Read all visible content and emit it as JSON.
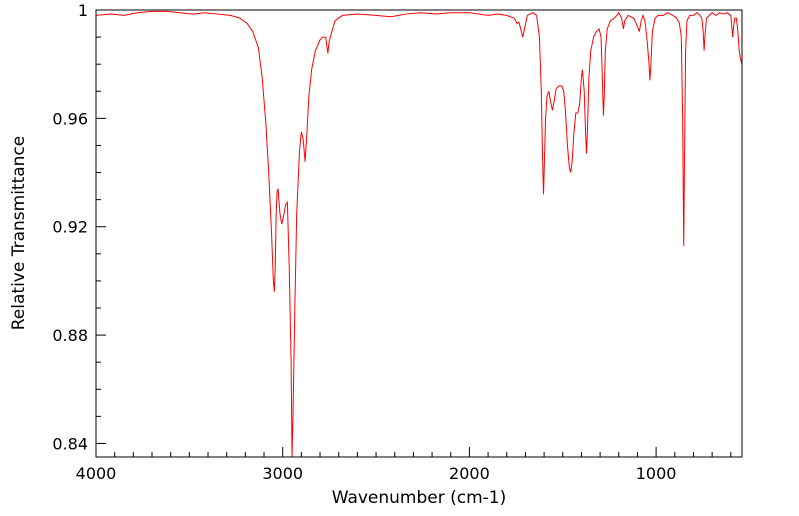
{
  "chart_data": {
    "type": "line",
    "title": "",
    "xlabel": "Wavenumber (cm-1)",
    "ylabel": "Relative Transmittance",
    "xlim": [
      4000,
      540
    ],
    "ylim": [
      0.835,
      1.0
    ],
    "x_ticks": [
      4000,
      3000,
      2000,
      1000
    ],
    "x_tick_labels": [
      "4000",
      "3000",
      "2000",
      "1000"
    ],
    "y_ticks": [
      0.84,
      0.88,
      0.92,
      0.96,
      1.0
    ],
    "y_tick_labels": [
      "0.84",
      "0.88",
      "0.92",
      "0.96",
      "1"
    ],
    "grid": false,
    "legend": "none",
    "series": [
      {
        "color": "#ff0000",
        "points": [
          [
            4000,
            0.998
          ],
          [
            3920,
            0.9985
          ],
          [
            3850,
            0.998
          ],
          [
            3780,
            0.999
          ],
          [
            3700,
            0.9995
          ],
          [
            3620,
            0.9995
          ],
          [
            3550,
            0.999
          ],
          [
            3480,
            0.9985
          ],
          [
            3420,
            0.999
          ],
          [
            3350,
            0.9985
          ],
          [
            3280,
            0.998
          ],
          [
            3230,
            0.997
          ],
          [
            3190,
            0.995
          ],
          [
            3160,
            0.992
          ],
          [
            3130,
            0.986
          ],
          [
            3110,
            0.975
          ],
          [
            3090,
            0.958
          ],
          [
            3075,
            0.94
          ],
          [
            3060,
            0.918
          ],
          [
            3050,
            0.9
          ],
          [
            3045,
            0.896
          ],
          [
            3040,
            0.905
          ],
          [
            3035,
            0.925
          ],
          [
            3030,
            0.933
          ],
          [
            3025,
            0.934
          ],
          [
            3015,
            0.925
          ],
          [
            3005,
            0.921
          ],
          [
            2995,
            0.924
          ],
          [
            2985,
            0.928
          ],
          [
            2975,
            0.929
          ],
          [
            2965,
            0.905
          ],
          [
            2955,
            0.87
          ],
          [
            2950,
            0.835
          ],
          [
            2945,
            0.85
          ],
          [
            2935,
            0.89
          ],
          [
            2925,
            0.925
          ],
          [
            2910,
            0.948
          ],
          [
            2900,
            0.955
          ],
          [
            2890,
            0.952
          ],
          [
            2880,
            0.944
          ],
          [
            2870,
            0.955
          ],
          [
            2860,
            0.968
          ],
          [
            2845,
            0.978
          ],
          [
            2825,
            0.985
          ],
          [
            2800,
            0.989
          ],
          [
            2785,
            0.99
          ],
          [
            2770,
            0.99
          ],
          [
            2758,
            0.984
          ],
          [
            2752,
            0.988
          ],
          [
            2745,
            0.99
          ],
          [
            2720,
            0.996
          ],
          [
            2680,
            0.998
          ],
          [
            2600,
            0.9985
          ],
          [
            2500,
            0.998
          ],
          [
            2420,
            0.9975
          ],
          [
            2340,
            0.9985
          ],
          [
            2260,
            0.999
          ],
          [
            2180,
            0.9985
          ],
          [
            2100,
            0.999
          ],
          [
            2000,
            0.999
          ],
          [
            1950,
            0.9985
          ],
          [
            1900,
            0.998
          ],
          [
            1850,
            0.9985
          ],
          [
            1800,
            0.998
          ],
          [
            1760,
            0.997
          ],
          [
            1745,
            0.995
          ],
          [
            1735,
            0.9955
          ],
          [
            1725,
            0.993
          ],
          [
            1715,
            0.99
          ],
          [
            1705,
            0.993
          ],
          [
            1690,
            0.998
          ],
          [
            1660,
            0.999
          ],
          [
            1640,
            0.998
          ],
          [
            1625,
            0.99
          ],
          [
            1615,
            0.97
          ],
          [
            1608,
            0.945
          ],
          [
            1603,
            0.932
          ],
          [
            1598,
            0.945
          ],
          [
            1592,
            0.96
          ],
          [
            1585,
            0.968
          ],
          [
            1575,
            0.97
          ],
          [
            1565,
            0.966
          ],
          [
            1555,
            0.963
          ],
          [
            1545,
            0.967
          ],
          [
            1535,
            0.971
          ],
          [
            1520,
            0.972
          ],
          [
            1505,
            0.972
          ],
          [
            1495,
            0.97
          ],
          [
            1485,
            0.962
          ],
          [
            1475,
            0.95
          ],
          [
            1465,
            0.942
          ],
          [
            1458,
            0.94
          ],
          [
            1450,
            0.944
          ],
          [
            1440,
            0.955
          ],
          [
            1430,
            0.962
          ],
          [
            1420,
            0.962
          ],
          [
            1410,
            0.965
          ],
          [
            1400,
            0.975
          ],
          [
            1395,
            0.978
          ],
          [
            1385,
            0.97
          ],
          [
            1378,
            0.955
          ],
          [
            1373,
            0.947
          ],
          [
            1368,
            0.955
          ],
          [
            1360,
            0.975
          ],
          [
            1350,
            0.985
          ],
          [
            1335,
            0.99
          ],
          [
            1320,
            0.992
          ],
          [
            1305,
            0.993
          ],
          [
            1295,
            0.99
          ],
          [
            1288,
            0.975
          ],
          [
            1282,
            0.961
          ],
          [
            1278,
            0.968
          ],
          [
            1272,
            0.985
          ],
          [
            1262,
            0.993
          ],
          [
            1245,
            0.996
          ],
          [
            1225,
            0.997
          ],
          [
            1210,
            0.998
          ],
          [
            1200,
            0.999
          ],
          [
            1185,
            0.997
          ],
          [
            1175,
            0.993
          ],
          [
            1168,
            0.996
          ],
          [
            1150,
            0.998
          ],
          [
            1120,
            0.997
          ],
          [
            1100,
            0.994
          ],
          [
            1090,
            0.992
          ],
          [
            1080,
            0.996
          ],
          [
            1070,
            0.998
          ],
          [
            1060,
            0.996
          ],
          [
            1050,
            0.99
          ],
          [
            1040,
            0.982
          ],
          [
            1033,
            0.974
          ],
          [
            1028,
            0.98
          ],
          [
            1020,
            0.992
          ],
          [
            1005,
            0.997
          ],
          [
            990,
            0.998
          ],
          [
            960,
            0.998
          ],
          [
            940,
            0.999
          ],
          [
            910,
            0.998
          ],
          [
            890,
            0.997
          ],
          [
            875,
            0.995
          ],
          [
            865,
            0.99
          ],
          [
            858,
            0.96
          ],
          [
            852,
            0.913
          ],
          [
            848,
            0.945
          ],
          [
            842,
            0.985
          ],
          [
            835,
            0.996
          ],
          [
            820,
            0.998
          ],
          [
            800,
            0.998
          ],
          [
            780,
            0.999
          ],
          [
            765,
            0.998
          ],
          [
            755,
            0.997
          ],
          [
            748,
            0.992
          ],
          [
            743,
            0.985
          ],
          [
            738,
            0.991
          ],
          [
            730,
            0.997
          ],
          [
            715,
            0.998
          ],
          [
            700,
            0.999
          ],
          [
            680,
            0.998
          ],
          [
            660,
            0.999
          ],
          [
            640,
            0.9985
          ],
          [
            620,
            0.999
          ],
          [
            600,
            0.998
          ],
          [
            590,
            0.99
          ],
          [
            585,
            0.994
          ],
          [
            578,
            0.997
          ],
          [
            570,
            0.997
          ],
          [
            562,
            0.992
          ],
          [
            555,
            0.985
          ],
          [
            548,
            0.982
          ],
          [
            540,
            0.98
          ]
        ]
      }
    ]
  }
}
